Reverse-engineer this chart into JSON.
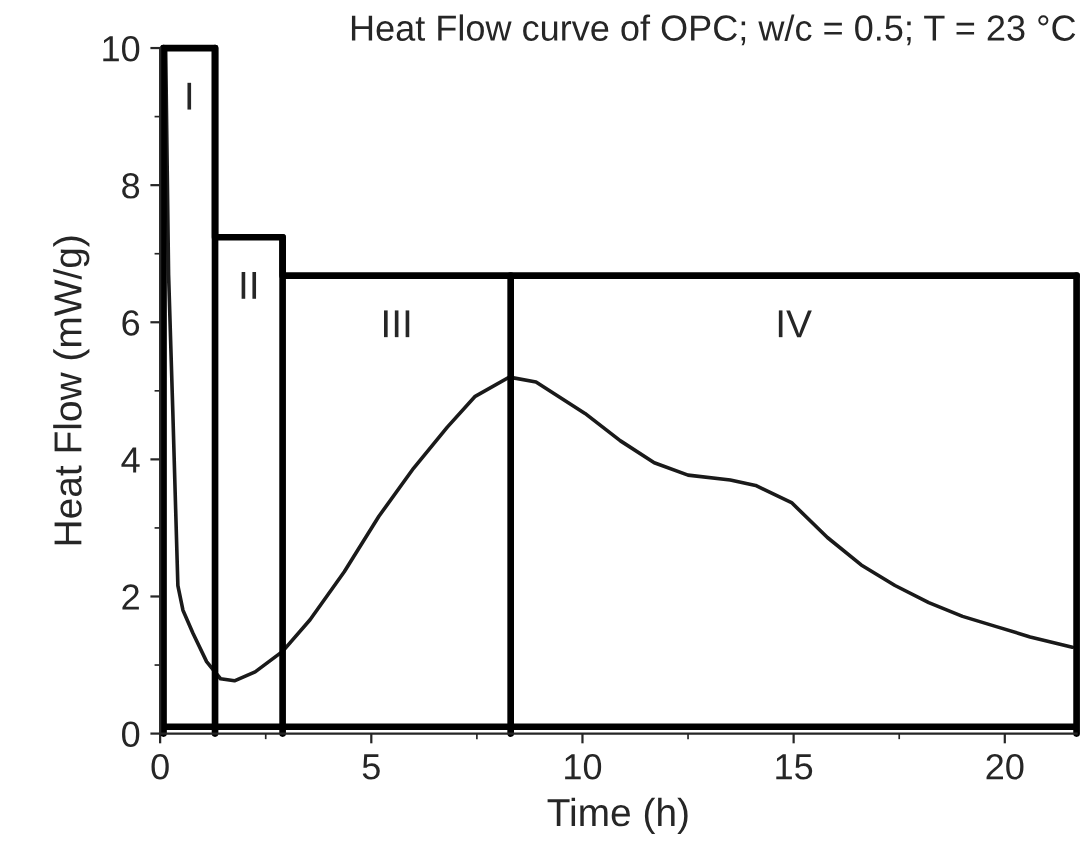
{
  "chart_data": {
    "type": "line",
    "title": "Heat Flow curve of OPC; w/c = 0.5; T = 23 °C",
    "xlabel": "Time (h)",
    "ylabel": "Heat Flow (mW/g)",
    "xlim": [
      0,
      21.7
    ],
    "xticks": [
      0,
      5,
      10,
      15,
      20
    ],
    "ylim": [
      0,
      10
    ],
    "yticks": [
      0,
      2,
      4,
      6,
      8,
      10
    ],
    "grid": false,
    "legend": false,
    "series": [
      {
        "color": "#1a1a1a",
        "x": [
          0.13,
          0.2,
          0.3,
          0.42,
          0.54,
          0.78,
          1.1,
          1.43,
          1.76,
          2.25,
          2.9,
          3.55,
          4.36,
          5.18,
          6.0,
          6.8,
          7.46,
          8.27,
          8.9,
          10.06,
          10.9,
          11.7,
          12.5,
          13.5,
          14.1,
          14.95,
          15.8,
          16.6,
          17.4,
          18.2,
          19.0,
          19.8,
          20.6,
          21.6
        ],
        "values": [
          10,
          6.7,
          4.7,
          2.16,
          1.8,
          1.46,
          1.05,
          0.8,
          0.77,
          0.9,
          1.2,
          1.66,
          2.36,
          3.17,
          3.87,
          4.47,
          4.92,
          5.2,
          5.13,
          4.67,
          4.27,
          3.95,
          3.77,
          3.7,
          3.62,
          3.37,
          2.86,
          2.46,
          2.16,
          1.91,
          1.71,
          1.56,
          1.41,
          1.26
        ]
      },
      {
        "type": "step",
        "color": "#000000",
        "x": [
          0.08,
          1.3,
          2.9,
          8.3,
          21.7
        ],
        "values": [
          10,
          7.24,
          6.68,
          6.68,
          6.68
        ]
      }
    ],
    "ref_lines": [
      {
        "axis": "x",
        "value": 0.08
      },
      {
        "axis": "x",
        "value": 1.3
      },
      {
        "axis": "x",
        "value": 2.9
      },
      {
        "axis": "x",
        "value": 8.3
      },
      {
        "axis": "x",
        "value": 21.7
      },
      {
        "axis": "y",
        "value": 0.1
      }
    ],
    "annotations": [
      {
        "text": "I",
        "x": 0.69,
        "y": 10
      },
      {
        "text": "II",
        "x": 2.1,
        "y": 7.24
      },
      {
        "text": "III",
        "x": 5.6,
        "y": 6.68
      },
      {
        "text": "IV",
        "x": 15,
        "y": 6.68
      }
    ]
  }
}
